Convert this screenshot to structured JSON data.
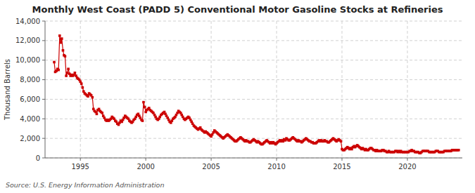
{
  "chart_data": {
    "type": "line",
    "title": "Monthly West Coast (PADD 5) Conventional Motor Gasoline Stocks at Refineries",
    "y_label": "Thousand Barrels",
    "source": "Source: U.S. Energy Information Administration",
    "color": "#CC0000",
    "marker": "square",
    "grid": true,
    "xlim": [
      1992.3,
      2024.2
    ],
    "xticks": [
      1995,
      2000,
      2005,
      2010,
      2015,
      2020
    ],
    "ylim": [
      0,
      14000
    ],
    "yticks": [
      0,
      {
        "value": 2000,
        "label": "2,000"
      },
      {
        "value": 4000,
        "label": "4,000"
      },
      {
        "value": 6000,
        "label": "6,000"
      },
      {
        "value": 8000,
        "label": "8,000"
      },
      {
        "value": 10000,
        "label": "10,000"
      },
      {
        "value": 12000,
        "label": "12,000"
      },
      {
        "value": 14000,
        "label": "14,000"
      }
    ],
    "x": [
      1993.0,
      1993.08,
      1993.17,
      1993.25,
      1993.33,
      1993.42,
      1993.5,
      1993.58,
      1993.67,
      1993.75,
      1993.83,
      1993.92,
      1994.0,
      1994.08,
      1994.17,
      1994.25,
      1994.33,
      1994.42,
      1994.5,
      1994.58,
      1994.67,
      1994.75,
      1994.83,
      1994.92,
      1995.0,
      1995.08,
      1995.17,
      1995.25,
      1995.33,
      1995.42,
      1995.5,
      1995.58,
      1995.67,
      1995.75,
      1995.83,
      1995.92,
      1996.0,
      1996.08,
      1996.17,
      1996.25,
      1996.33,
      1996.42,
      1996.5,
      1996.58,
      1996.67,
      1996.75,
      1996.83,
      1996.92,
      1997.0,
      1997.08,
      1997.17,
      1997.25,
      1997.33,
      1997.42,
      1997.5,
      1997.58,
      1997.67,
      1997.75,
      1997.83,
      1997.92,
      1998.0,
      1998.08,
      1998.17,
      1998.25,
      1998.33,
      1998.42,
      1998.5,
      1998.58,
      1998.67,
      1998.75,
      1998.83,
      1998.92,
      1999.0,
      1999.08,
      1999.17,
      1999.25,
      1999.33,
      1999.42,
      1999.5,
      1999.58,
      1999.67,
      1999.75,
      1999.83,
      1999.92,
      2000.0,
      2000.08,
      2000.17,
      2000.25,
      2000.33,
      2000.42,
      2000.5,
      2000.58,
      2000.67,
      2000.75,
      2000.83,
      2000.92,
      2001.0,
      2001.08,
      2001.17,
      2001.25,
      2001.33,
      2001.42,
      2001.5,
      2001.58,
      2001.67,
      2001.75,
      2001.83,
      2001.92,
      2002.0,
      2002.08,
      2002.17,
      2002.25,
      2002.33,
      2002.42,
      2002.5,
      2002.58,
      2002.67,
      2002.75,
      2002.83,
      2002.92,
      2003.0,
      2003.08,
      2003.17,
      2003.25,
      2003.33,
      2003.42,
      2003.5,
      2003.58,
      2003.67,
      2003.75,
      2003.83,
      2003.92,
      2004.0,
      2004.08,
      2004.17,
      2004.25,
      2004.33,
      2004.42,
      2004.5,
      2004.58,
      2004.67,
      2004.75,
      2004.83,
      2004.92,
      2005.0,
      2005.08,
      2005.17,
      2005.25,
      2005.33,
      2005.42,
      2005.5,
      2005.58,
      2005.67,
      2005.75,
      2005.83,
      2005.92,
      2006.0,
      2006.08,
      2006.17,
      2006.25,
      2006.33,
      2006.42,
      2006.5,
      2006.58,
      2006.67,
      2006.75,
      2006.83,
      2006.92,
      2007.0,
      2007.08,
      2007.17,
      2007.25,
      2007.33,
      2007.42,
      2007.5,
      2007.58,
      2007.67,
      2007.75,
      2007.83,
      2007.92,
      2008.0,
      2008.08,
      2008.17,
      2008.25,
      2008.33,
      2008.42,
      2008.5,
      2008.58,
      2008.67,
      2008.75,
      2008.83,
      2008.92,
      2009.0,
      2009.08,
      2009.17,
      2009.25,
      2009.33,
      2009.42,
      2009.5,
      2009.58,
      2009.67,
      2009.75,
      2009.83,
      2009.92,
      2010.0,
      2010.08,
      2010.17,
      2010.25,
      2010.33,
      2010.42,
      2010.5,
      2010.58,
      2010.67,
      2010.75,
      2010.83,
      2010.92,
      2011.0,
      2011.08,
      2011.17,
      2011.25,
      2011.33,
      2011.42,
      2011.5,
      2011.58,
      2011.67,
      2011.75,
      2011.83,
      2011.92,
      2012.0,
      2012.08,
      2012.17,
      2012.25,
      2012.33,
      2012.42,
      2012.5,
      2012.58,
      2012.67,
      2012.75,
      2012.83,
      2012.92,
      2013.0,
      2013.08,
      2013.17,
      2013.25,
      2013.33,
      2013.42,
      2013.5,
      2013.58,
      2013.67,
      2013.75,
      2013.83,
      2013.92,
      2014.0,
      2014.08,
      2014.17,
      2014.25,
      2014.33,
      2014.42,
      2014.5,
      2014.58,
      2014.67,
      2014.75,
      2014.83,
      2014.92,
      2015.0,
      2015.08,
      2015.17,
      2015.25,
      2015.33,
      2015.42,
      2015.5,
      2015.58,
      2015.67,
      2015.75,
      2015.83,
      2015.92,
      2016.0,
      2016.08,
      2016.17,
      2016.25,
      2016.33,
      2016.42,
      2016.5,
      2016.58,
      2016.67,
      2016.75,
      2016.83,
      2016.92,
      2017.0,
      2017.08,
      2017.17,
      2017.25,
      2017.33,
      2017.42,
      2017.5,
      2017.58,
      2017.67,
      2017.75,
      2017.83,
      2017.92,
      2018.0,
      2018.08,
      2018.17,
      2018.25,
      2018.33,
      2018.42,
      2018.5,
      2018.58,
      2018.67,
      2018.75,
      2018.83,
      2018.92,
      2019.0,
      2019.08,
      2019.17,
      2019.25,
      2019.33,
      2019.42,
      2019.5,
      2019.58,
      2019.67,
      2019.75,
      2019.83,
      2019.92,
      2020.0,
      2020.08,
      2020.17,
      2020.25,
      2020.33,
      2020.42,
      2020.5,
      2020.58,
      2020.67,
      2020.75,
      2020.83,
      2020.92,
      2021.0,
      2021.08,
      2021.17,
      2021.25,
      2021.33,
      2021.42,
      2021.5,
      2021.58,
      2021.67,
      2021.75,
      2021.83,
      2021.92,
      2022.0,
      2022.08,
      2022.17,
      2022.25,
      2022.33,
      2022.42,
      2022.5,
      2022.58,
      2022.67,
      2022.75,
      2022.83,
      2022.92,
      2023.0,
      2023.08,
      2023.17,
      2023.25,
      2023.33,
      2023.42,
      2023.5,
      2023.58,
      2023.67,
      2023.75,
      2023.83,
      2023.92
    ],
    "values": [
      9800,
      8800,
      8900,
      9100,
      9000,
      12500,
      11800,
      12200,
      11000,
      10500,
      10400,
      8400,
      8700,
      9100,
      8600,
      8400,
      8500,
      8400,
      8500,
      8700,
      8400,
      8200,
      8100,
      8000,
      7800,
      7600,
      7200,
      6800,
      6600,
      6500,
      6400,
      6300,
      6600,
      6500,
      6400,
      6200,
      5000,
      4800,
      4700,
      4500,
      4900,
      5000,
      4800,
      4700,
      4600,
      4300,
      4100,
      3900,
      3800,
      3900,
      3800,
      3900,
      4000,
      4200,
      4100,
      4000,
      3800,
      3700,
      3500,
      3400,
      3600,
      3800,
      3700,
      3900,
      4100,
      4300,
      4200,
      4100,
      4000,
      3800,
      3700,
      3600,
      3700,
      3900,
      4000,
      4200,
      4400,
      4500,
      4300,
      4100,
      3900,
      3800,
      5700,
      5200,
      4700,
      4900,
      5000,
      5100,
      4900,
      4800,
      4700,
      4600,
      4400,
      4200,
      4000,
      3900,
      4000,
      4200,
      4400,
      4500,
      4600,
      4700,
      4500,
      4300,
      4100,
      3900,
      3700,
      3600,
      3800,
      4000,
      4100,
      4200,
      4400,
      4600,
      4800,
      4700,
      4600,
      4400,
      4200,
      4000,
      3900,
      4000,
      4100,
      4200,
      4100,
      3900,
      3700,
      3500,
      3300,
      3200,
      3100,
      3000,
      2900,
      3000,
      3100,
      2900,
      2800,
      2700,
      2600,
      2700,
      2600,
      2500,
      2400,
      2300,
      2200,
      2400,
      2600,
      2800,
      2700,
      2600,
      2500,
      2400,
      2300,
      2200,
      2100,
      2000,
      2100,
      2200,
      2300,
      2400,
      2300,
      2200,
      2100,
      2000,
      1900,
      1800,
      1700,
      1700,
      1800,
      1900,
      2000,
      2100,
      2000,
      1900,
      1800,
      1700,
      1800,
      1700,
      1700,
      1600,
      1600,
      1700,
      1800,
      1900,
      1800,
      1700,
      1600,
      1700,
      1600,
      1500,
      1400,
      1400,
      1500,
      1600,
      1700,
      1800,
      1700,
      1600,
      1500,
      1600,
      1500,
      1600,
      1500,
      1400,
      1500,
      1600,
      1700,
      1800,
      1700,
      1800,
      1700,
      1900,
      1800,
      2000,
      1900,
      1800,
      1800,
      1900,
      2000,
      2100,
      2000,
      1900,
      1800,
      1700,
      1800,
      1700,
      1700,
      1600,
      1700,
      1800,
      1900,
      2000,
      1900,
      1800,
      1700,
      1700,
      1600,
      1600,
      1500,
      1500,
      1500,
      1600,
      1700,
      1800,
      1700,
      1800,
      1700,
      1700,
      1800,
      1700,
      1700,
      1600,
      1600,
      1700,
      1800,
      1900,
      2000,
      1900,
      1800,
      1700,
      1800,
      1900,
      1800,
      1700,
      900,
      800,
      800,
      900,
      1000,
      1100,
      1000,
      900,
      1000,
      900,
      1100,
      1200,
      1100,
      1200,
      1300,
      1200,
      1100,
      1000,
      900,
      1000,
      900,
      800,
      900,
      800,
      800,
      900,
      1000,
      1000,
      900,
      800,
      800,
      700,
      800,
      700,
      700,
      700,
      700,
      800,
      800,
      700,
      700,
      600,
      600,
      700,
      600,
      600,
      600,
      600,
      600,
      700,
      700,
      600,
      700,
      600,
      700,
      600,
      600,
      600,
      600,
      600,
      600,
      600,
      700,
      700,
      800,
      700,
      700,
      600,
      600,
      600,
      600,
      500,
      500,
      600,
      700,
      700,
      700,
      700,
      700,
      700,
      600,
      600,
      600,
      600,
      600,
      600,
      700,
      700,
      700,
      600,
      600,
      600,
      600,
      600,
      700,
      700,
      700,
      700,
      700,
      700,
      700,
      800,
      800,
      800,
      800,
      800,
      800,
      800
    ]
  }
}
